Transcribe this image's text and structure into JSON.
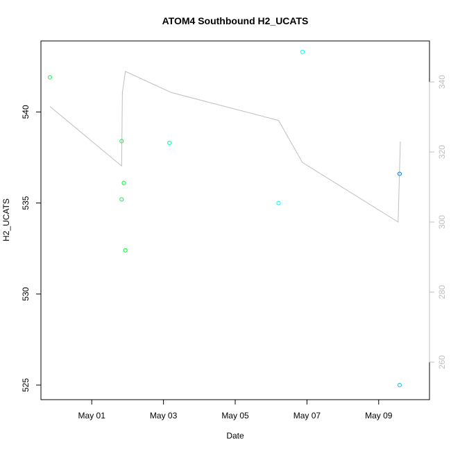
{
  "chart_data": {
    "type": "scatter",
    "title": "ATOM4 Southbound H2_UCATS",
    "xlabel": "Date",
    "ylabel": "H2_UCATS",
    "xlim": [
      "2018-04-29T14:00",
      "2018-05-10T10:00"
    ],
    "ylim": [
      524.2,
      543.9
    ],
    "y2lim": [
      249.3,
      351.7
    ],
    "grid": false,
    "legend": "none",
    "x_ticks": [
      {
        "value": "2018-05-01",
        "label": "May 01"
      },
      {
        "value": "2018-05-03",
        "label": "May 03"
      },
      {
        "value": "2018-05-05",
        "label": "May 05"
      },
      {
        "value": "2018-05-07",
        "label": "May 07"
      },
      {
        "value": "2018-05-09",
        "label": "May 09"
      }
    ],
    "y_ticks": [
      525,
      530,
      535,
      540
    ],
    "y2_ticks": [
      260,
      280,
      300,
      320,
      340
    ],
    "points": [
      {
        "x": "2018-04-29T20:00",
        "y": 541.9,
        "color": "#00ff33"
      },
      {
        "x": "2018-05-01T20:00",
        "y": 538.4,
        "color": "#00ff33"
      },
      {
        "x": "2018-05-01T20:00",
        "y": 535.2,
        "color": "#00ff33"
      },
      {
        "x": "2018-05-01T21:30",
        "y": 536.1,
        "color": "#00ff33"
      },
      {
        "x": "2018-05-01T22:30",
        "y": 532.4,
        "color": "#00ff33"
      },
      {
        "x": "2018-05-03T04:00",
        "y": 538.3,
        "color": "#00ff99"
      },
      {
        "x": "2018-05-06T05:00",
        "y": 535.0,
        "color": "#00ffff"
      },
      {
        "x": "2018-05-06T21:00",
        "y": 543.3,
        "color": "#00ffff"
      },
      {
        "x": "2018-05-09T14:00",
        "y": 536.6,
        "color": "#0080ff"
      },
      {
        "x": "2018-05-09T14:00",
        "y": 525.0,
        "color": "#00ccff"
      }
    ],
    "secondary_series": {
      "axis": "right",
      "color": "#bebebe",
      "points": [
        {
          "x": "2018-04-29T20:00",
          "y": 333
        },
        {
          "x": "2018-05-01T20:00",
          "y": 316
        },
        {
          "x": "2018-05-01T20:30",
          "y": 337
        },
        {
          "x": "2018-05-01T22:30",
          "y": 343
        },
        {
          "x": "2018-05-03T05:00",
          "y": 337
        },
        {
          "x": "2018-05-06T05:00",
          "y": 329
        },
        {
          "x": "2018-05-06T21:00",
          "y": 317
        },
        {
          "x": "2018-05-09T13:00",
          "y": 300
        },
        {
          "x": "2018-05-09T14:30",
          "y": 323
        }
      ]
    }
  }
}
